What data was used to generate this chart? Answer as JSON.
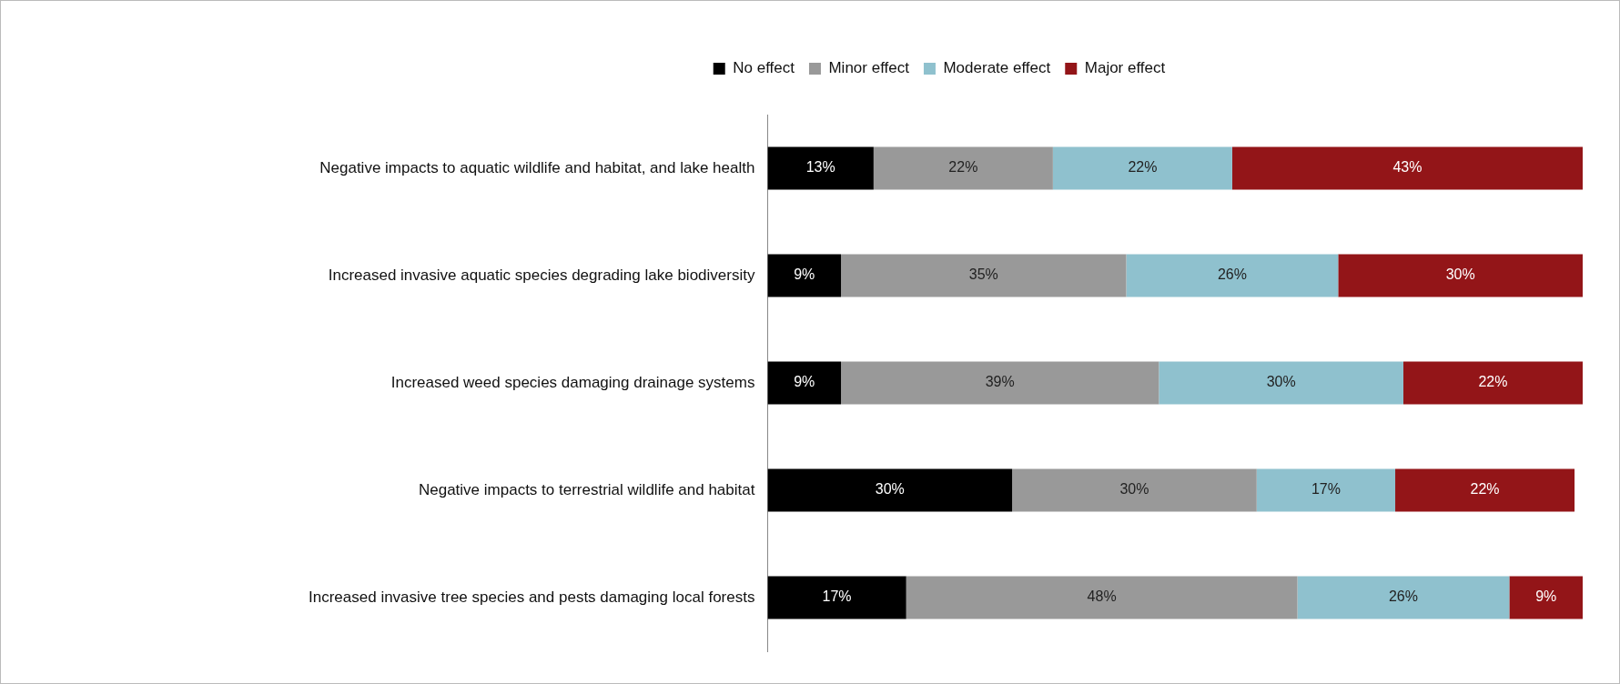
{
  "chart_data": {
    "type": "bar",
    "orientation": "horizontal",
    "stacked": true,
    "tick_labels": "y",
    "legend": "top",
    "categories": [
      "Negative impacts to aquatic wildlife and habitat, and lake health",
      "Increased invasive aquatic species degrading lake biodiversity",
      "Increased weed species damaging drainage systems",
      "Negative impacts to terrestrial wildlife and habitat",
      "Increased invasive tree species and pests damaging local forests"
    ],
    "series": [
      {
        "name": "No effect",
        "color": "#000000",
        "values": [
          13,
          9,
          9,
          30,
          17
        ],
        "value_labels": [
          "13%",
          "9%",
          "9%",
          "30%",
          "17%"
        ]
      },
      {
        "name": "Minor effect",
        "color": "#999999",
        "values": [
          22,
          35,
          39,
          30,
          48
        ],
        "value_labels": [
          "22%",
          "35%",
          "39%",
          "30%",
          "48%"
        ]
      },
      {
        "name": "Moderate effect",
        "color": "#8fc1ce",
        "values": [
          22,
          26,
          30,
          17,
          26
        ],
        "value_labels": [
          "22%",
          "26%",
          "30%",
          "17%",
          "26%"
        ]
      },
      {
        "name": "Major effect",
        "color": "#931518",
        "values": [
          43,
          30,
          22,
          22,
          9
        ],
        "value_labels": [
          "43%",
          "30%",
          "22%",
          "22%",
          "9%"
        ]
      }
    ]
  }
}
